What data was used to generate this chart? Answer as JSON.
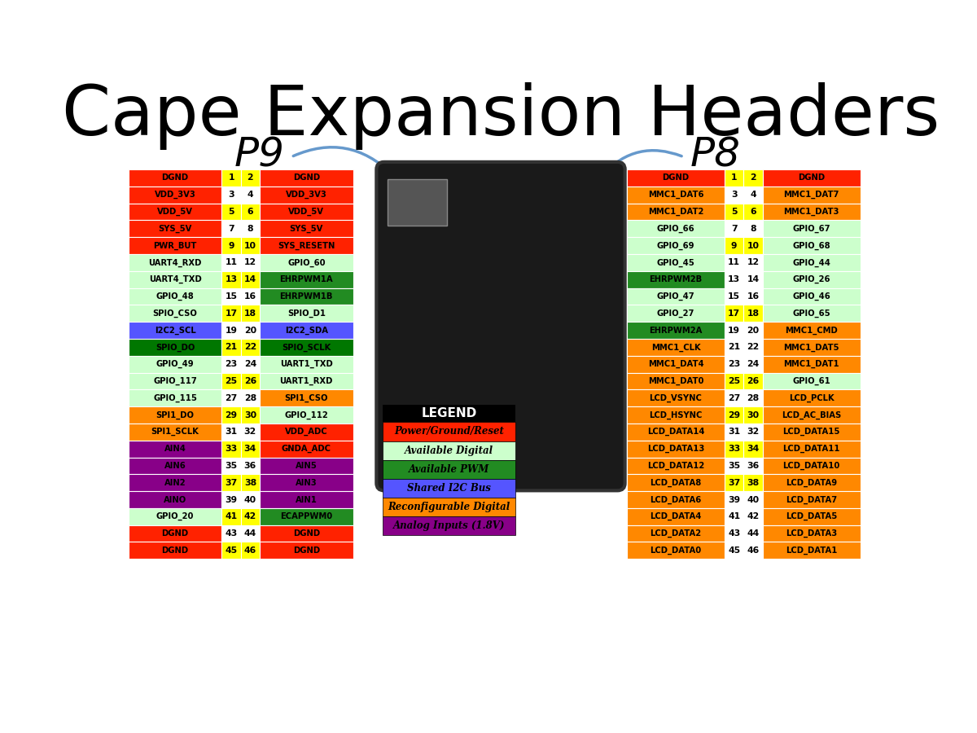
{
  "title": "Cape Expansion Headers",
  "bg_color": "#ffffff",
  "p9_label": "P9",
  "p8_label": "P8",
  "p9_pins": [
    {
      "pin_l": 1,
      "pin_r": 2,
      "label_l": "DGND",
      "label_r": "DGND",
      "color_l": "red",
      "color_r": "red",
      "num_color": "yellow"
    },
    {
      "pin_l": 3,
      "pin_r": 4,
      "label_l": "VDD_3V3",
      "label_r": "VDD_3V3",
      "color_l": "red",
      "color_r": "red",
      "num_color": "white"
    },
    {
      "pin_l": 5,
      "pin_r": 6,
      "label_l": "VDD_5V",
      "label_r": "VDD_5V",
      "color_l": "red",
      "color_r": "red",
      "num_color": "yellow"
    },
    {
      "pin_l": 7,
      "pin_r": 8,
      "label_l": "SYS_5V",
      "label_r": "SYS_5V",
      "color_l": "red",
      "color_r": "red",
      "num_color": "white"
    },
    {
      "pin_l": 9,
      "pin_r": 10,
      "label_l": "PWR_BUT",
      "label_r": "SYS_RESETN",
      "color_l": "red",
      "color_r": "red",
      "num_color": "yellow"
    },
    {
      "pin_l": 11,
      "pin_r": 12,
      "label_l": "UART4_RXD",
      "label_r": "GPIO_60",
      "color_l": "light_green",
      "color_r": "light_green",
      "num_color": "white"
    },
    {
      "pin_l": 13,
      "pin_r": 14,
      "label_l": "UART4_TXD",
      "label_r": "EHRPWM1A",
      "color_l": "light_green",
      "color_r": "dark_green",
      "num_color": "yellow"
    },
    {
      "pin_l": 15,
      "pin_r": 16,
      "label_l": "GPIO_48",
      "label_r": "EHRPWM1B",
      "color_l": "light_green",
      "color_r": "dark_green",
      "num_color": "white"
    },
    {
      "pin_l": 17,
      "pin_r": 18,
      "label_l": "SPIO_CSO",
      "label_r": "SPIO_D1",
      "color_l": "light_green",
      "color_r": "light_green",
      "num_color": "yellow"
    },
    {
      "pin_l": 19,
      "pin_r": 20,
      "label_l": "I2C2_SCL",
      "label_r": "I2C2_SDA",
      "color_l": "blue",
      "color_r": "blue",
      "num_color": "white"
    },
    {
      "pin_l": 21,
      "pin_r": 22,
      "label_l": "SPIO_DO",
      "label_r": "SPIO_SCLK",
      "color_l": "green",
      "color_r": "green",
      "num_color": "yellow"
    },
    {
      "pin_l": 23,
      "pin_r": 24,
      "label_l": "GPIO_49",
      "label_r": "UART1_TXD",
      "color_l": "light_green",
      "color_r": "light_green",
      "num_color": "white"
    },
    {
      "pin_l": 25,
      "pin_r": 26,
      "label_l": "GPIO_117",
      "label_r": "UART1_RXD",
      "color_l": "light_green",
      "color_r": "light_green",
      "num_color": "yellow"
    },
    {
      "pin_l": 27,
      "pin_r": 28,
      "label_l": "GPIO_115",
      "label_r": "SPI1_CSO",
      "color_l": "light_green",
      "color_r": "orange",
      "num_color": "white"
    },
    {
      "pin_l": 29,
      "pin_r": 30,
      "label_l": "SPI1_DO",
      "label_r": "GPIO_112",
      "color_l": "orange",
      "color_r": "light_green",
      "num_color": "yellow"
    },
    {
      "pin_l": 31,
      "pin_r": 32,
      "label_l": "SPI1_SCLK",
      "label_r": "VDD_ADC",
      "color_l": "orange",
      "color_r": "red",
      "num_color": "white"
    },
    {
      "pin_l": 33,
      "pin_r": 34,
      "label_l": "AIN4",
      "label_r": "GNDA_ADC",
      "color_l": "purple",
      "color_r": "red",
      "num_color": "yellow"
    },
    {
      "pin_l": 35,
      "pin_r": 36,
      "label_l": "AIN6",
      "label_r": "AIN5",
      "color_l": "purple",
      "color_r": "purple",
      "num_color": "white"
    },
    {
      "pin_l": 37,
      "pin_r": 38,
      "label_l": "AIN2",
      "label_r": "AIN3",
      "color_l": "purple",
      "color_r": "purple",
      "num_color": "yellow"
    },
    {
      "pin_l": 39,
      "pin_r": 40,
      "label_l": "AINO",
      "label_r": "AIN1",
      "color_l": "purple",
      "color_r": "purple",
      "num_color": "white"
    },
    {
      "pin_l": 41,
      "pin_r": 42,
      "label_l": "GPIO_20",
      "label_r": "ECAPPWM0",
      "color_l": "light_green",
      "color_r": "dark_green",
      "num_color": "yellow"
    },
    {
      "pin_l": 43,
      "pin_r": 44,
      "label_l": "DGND",
      "label_r": "DGND",
      "color_l": "red",
      "color_r": "red",
      "num_color": "white"
    },
    {
      "pin_l": 45,
      "pin_r": 46,
      "label_l": "DGND",
      "label_r": "DGND",
      "color_l": "red",
      "color_r": "red",
      "num_color": "yellow"
    }
  ],
  "p8_pins": [
    {
      "pin_l": 1,
      "pin_r": 2,
      "label_l": "DGND",
      "label_r": "DGND",
      "color_l": "red",
      "color_r": "red",
      "num_color": "yellow"
    },
    {
      "pin_l": 3,
      "pin_r": 4,
      "label_l": "MMC1_DAT6",
      "label_r": "MMC1_DAT7",
      "color_l": "orange",
      "color_r": "orange",
      "num_color": "white"
    },
    {
      "pin_l": 5,
      "pin_r": 6,
      "label_l": "MMC1_DAT2",
      "label_r": "MMC1_DAT3",
      "color_l": "orange",
      "color_r": "orange",
      "num_color": "yellow"
    },
    {
      "pin_l": 7,
      "pin_r": 8,
      "label_l": "GPIO_66",
      "label_r": "GPIO_67",
      "color_l": "light_green",
      "color_r": "light_green",
      "num_color": "white"
    },
    {
      "pin_l": 9,
      "pin_r": 10,
      "label_l": "GPIO_69",
      "label_r": "GPIO_68",
      "color_l": "light_green",
      "color_r": "light_green",
      "num_color": "yellow"
    },
    {
      "pin_l": 11,
      "pin_r": 12,
      "label_l": "GPIO_45",
      "label_r": "GPIO_44",
      "color_l": "light_green",
      "color_r": "light_green",
      "num_color": "white"
    },
    {
      "pin_l": 13,
      "pin_r": 14,
      "label_l": "EHRPWM2B",
      "label_r": "GPIO_26",
      "color_l": "dark_green",
      "color_r": "light_green",
      "num_color": "white"
    },
    {
      "pin_l": 15,
      "pin_r": 16,
      "label_l": "GPIO_47",
      "label_r": "GPIO_46",
      "color_l": "light_green",
      "color_r": "light_green",
      "num_color": "white"
    },
    {
      "pin_l": 17,
      "pin_r": 18,
      "label_l": "GPIO_27",
      "label_r": "GPIO_65",
      "color_l": "light_green",
      "color_r": "light_green",
      "num_color": "yellow"
    },
    {
      "pin_l": 19,
      "pin_r": 20,
      "label_l": "EHRPWM2A",
      "label_r": "MMC1_CMD",
      "color_l": "dark_green",
      "color_r": "orange",
      "num_color": "white"
    },
    {
      "pin_l": 21,
      "pin_r": 22,
      "label_l": "MMC1_CLK",
      "label_r": "MMC1_DAT5",
      "color_l": "orange",
      "color_r": "orange",
      "num_color": "white"
    },
    {
      "pin_l": 23,
      "pin_r": 24,
      "label_l": "MMC1_DAT4",
      "label_r": "MMC1_DAT1",
      "color_l": "orange",
      "color_r": "orange",
      "num_color": "white"
    },
    {
      "pin_l": 25,
      "pin_r": 26,
      "label_l": "MMC1_DAT0",
      "label_r": "GPIO_61",
      "color_l": "orange",
      "color_r": "light_green",
      "num_color": "yellow"
    },
    {
      "pin_l": 27,
      "pin_r": 28,
      "label_l": "LCD_VSYNC",
      "label_r": "LCD_PCLK",
      "color_l": "orange",
      "color_r": "orange",
      "num_color": "white"
    },
    {
      "pin_l": 29,
      "pin_r": 30,
      "label_l": "LCD_HSYNC",
      "label_r": "LCD_AC_BIAS",
      "color_l": "orange",
      "color_r": "orange",
      "num_color": "yellow"
    },
    {
      "pin_l": 31,
      "pin_r": 32,
      "label_l": "LCD_DATA14",
      "label_r": "LCD_DATA15",
      "color_l": "orange",
      "color_r": "orange",
      "num_color": "white"
    },
    {
      "pin_l": 33,
      "pin_r": 34,
      "label_l": "LCD_DATA13",
      "label_r": "LCD_DATA11",
      "color_l": "orange",
      "color_r": "orange",
      "num_color": "yellow"
    },
    {
      "pin_l": 35,
      "pin_r": 36,
      "label_l": "LCD_DATA12",
      "label_r": "LCD_DATA10",
      "color_l": "orange",
      "color_r": "orange",
      "num_color": "white"
    },
    {
      "pin_l": 37,
      "pin_r": 38,
      "label_l": "LCD_DATA8",
      "label_r": "LCD_DATA9",
      "color_l": "orange",
      "color_r": "orange",
      "num_color": "yellow"
    },
    {
      "pin_l": 39,
      "pin_r": 40,
      "label_l": "LCD_DATA6",
      "label_r": "LCD_DATA7",
      "color_l": "orange",
      "color_r": "orange",
      "num_color": "white"
    },
    {
      "pin_l": 41,
      "pin_r": 42,
      "label_l": "LCD_DATA4",
      "label_r": "LCD_DATA5",
      "color_l": "orange",
      "color_r": "orange",
      "num_color": "white"
    },
    {
      "pin_l": 43,
      "pin_r": 44,
      "label_l": "LCD_DATA2",
      "label_r": "LCD_DATA3",
      "color_l": "orange",
      "color_r": "orange",
      "num_color": "white"
    },
    {
      "pin_l": 45,
      "pin_r": 46,
      "label_l": "LCD_DATA0",
      "label_r": "LCD_DATA1",
      "color_l": "orange",
      "color_r": "orange",
      "num_color": "white"
    }
  ],
  "legend": [
    {
      "label": "Power/Ground/Reset",
      "color": "red",
      "text_color": "black"
    },
    {
      "label": "Available Digital",
      "color": "light_green",
      "text_color": "black"
    },
    {
      "label": "Available PWM",
      "color": "dark_green",
      "text_color": "black"
    },
    {
      "label": "Shared I2C Bus",
      "color": "blue",
      "text_color": "black"
    },
    {
      "label": "Reconfigurable Digital",
      "color": "orange",
      "text_color": "black"
    },
    {
      "label": "Analog Inputs (1.8V)",
      "color": "purple",
      "text_color": "black"
    }
  ]
}
